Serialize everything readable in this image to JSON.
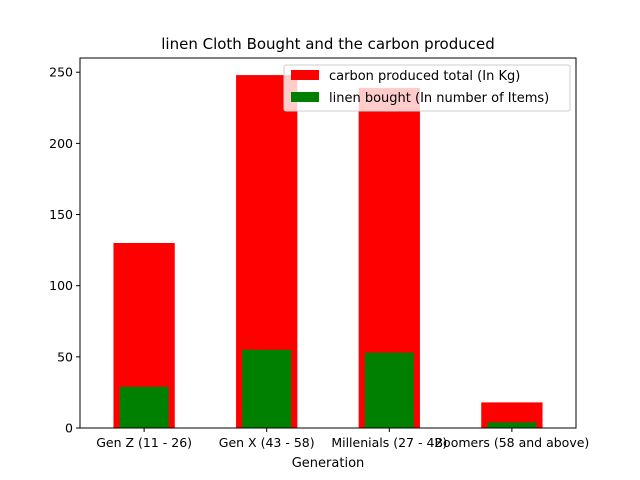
{
  "chart_data": {
    "type": "bar",
    "title": "linen Cloth Bought and the carbon produced",
    "xlabel": "Generation",
    "ylabel": "",
    "categories": [
      "Gen Z (11 - 26)",
      "Gen X (43 - 58)",
      "Millenials (27 - 42)",
      "Boomers (58 and above)"
    ],
    "series": [
      {
        "name": "carbon produced total (In Kg)",
        "values": [
          130,
          248,
          239,
          18
        ],
        "color": "#ff0000"
      },
      {
        "name": "linen bought (In number of Items)",
        "values": [
          29,
          55,
          53,
          4
        ],
        "color": "#008000"
      }
    ],
    "ylim": [
      0,
      260
    ],
    "yticks": [
      0,
      50,
      100,
      150,
      200,
      250
    ],
    "grid": false,
    "legend_position": "top-right"
  }
}
